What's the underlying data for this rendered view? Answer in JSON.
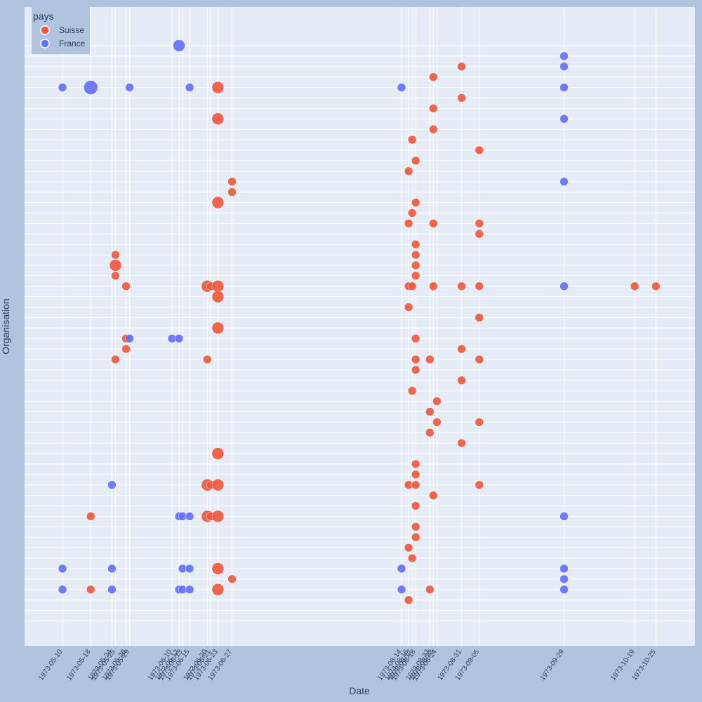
{
  "chart_data": {
    "type": "scatter",
    "title": "",
    "xlabel": "Date",
    "ylabel": "Organisation",
    "legend": {
      "title": "pays",
      "placement": "top-left",
      "entries": [
        {
          "name": "Suisse",
          "color": "#EF553B"
        },
        {
          "name": "France",
          "color": "#636EFA"
        }
      ]
    },
    "x_ticks": [
      "1973-05-10",
      "1973-05-18",
      "1973-05-24",
      "1973-05-25",
      "1973-05-28",
      "1973-05-29",
      "1973-06-10",
      "1973-06-12",
      "1973-06-13",
      "1973-06-15",
      "1973-06-20",
      "1973-06-21",
      "1973-06-23",
      "1973-06-27",
      "1973-08-14",
      "1973-08-16",
      "1973-08-17",
      "1973-08-18",
      "1973-08-22",
      "1973-08-23",
      "1973-08-24",
      "1973-08-31",
      "1973-09-05",
      "1973-09-29",
      "1973-10-19",
      "1973-10-25"
    ],
    "y_categories": 56,
    "grid": true,
    "series": [
      {
        "name": "Suisse",
        "color": "#EF553B",
        "points": [
          {
            "x": "1973-08-31",
            "y": 2,
            "s": 1
          },
          {
            "x": "1973-08-23",
            "y": 3,
            "s": 1
          },
          {
            "x": "1973-06-23",
            "y": 4,
            "s": 2
          },
          {
            "x": "1973-08-31",
            "y": 5,
            "s": 1
          },
          {
            "x": "1973-08-23",
            "y": 6,
            "s": 1
          },
          {
            "x": "1973-06-23",
            "y": 7,
            "s": 2
          },
          {
            "x": "1973-08-23",
            "y": 8,
            "s": 1
          },
          {
            "x": "1973-08-17",
            "y": 9,
            "s": 1
          },
          {
            "x": "1973-09-05",
            "y": 10,
            "s": 1
          },
          {
            "x": "1973-08-18",
            "y": 11,
            "s": 1
          },
          {
            "x": "1973-08-16",
            "y": 12,
            "s": 1
          },
          {
            "x": "1973-06-27",
            "y": 13,
            "s": 1
          },
          {
            "x": "1973-06-27",
            "y": 14,
            "s": 1
          },
          {
            "x": "1973-06-23",
            "y": 15,
            "s": 2
          },
          {
            "x": "1973-08-18",
            "y": 15,
            "s": 1
          },
          {
            "x": "1973-08-17",
            "y": 16,
            "s": 1
          },
          {
            "x": "1973-08-16",
            "y": 17,
            "s": 1
          },
          {
            "x": "1973-08-23",
            "y": 17,
            "s": 1
          },
          {
            "x": "1973-09-05",
            "y": 17,
            "s": 1
          },
          {
            "x": "1973-09-05",
            "y": 18,
            "s": 1
          },
          {
            "x": "1973-08-18",
            "y": 19,
            "s": 1
          },
          {
            "x": "1973-05-25",
            "y": 20,
            "s": 1
          },
          {
            "x": "1973-08-18",
            "y": 20,
            "s": 1
          },
          {
            "x": "1973-05-25",
            "y": 21,
            "s": 2
          },
          {
            "x": "1973-08-18",
            "y": 21,
            "s": 1
          },
          {
            "x": "1973-05-25",
            "y": 22,
            "s": 1
          },
          {
            "x": "1973-08-18",
            "y": 22,
            "s": 1
          },
          {
            "x": "1973-05-28",
            "y": 23,
            "s": 1
          },
          {
            "x": "1973-06-20",
            "y": 23,
            "s": 2
          },
          {
            "x": "1973-06-21",
            "y": 23,
            "s": 1
          },
          {
            "x": "1973-06-23",
            "y": 23,
            "s": 2
          },
          {
            "x": "1973-08-16",
            "y": 23,
            "s": 1
          },
          {
            "x": "1973-08-17",
            "y": 23,
            "s": 1
          },
          {
            "x": "1973-08-23",
            "y": 23,
            "s": 1
          },
          {
            "x": "1973-08-31",
            "y": 23,
            "s": 1
          },
          {
            "x": "1973-09-05",
            "y": 23,
            "s": 1
          },
          {
            "x": "1973-10-19",
            "y": 23,
            "s": 1
          },
          {
            "x": "1973-10-25",
            "y": 23,
            "s": 1
          },
          {
            "x": "1973-06-23",
            "y": 24,
            "s": 2
          },
          {
            "x": "1973-08-16",
            "y": 25,
            "s": 1
          },
          {
            "x": "1973-09-05",
            "y": 26,
            "s": 1
          },
          {
            "x": "1973-06-23",
            "y": 27,
            "s": 2
          },
          {
            "x": "1973-08-18",
            "y": 28,
            "s": 1
          },
          {
            "x": "1973-05-28",
            "y": 29,
            "s": 1
          },
          {
            "x": "1973-08-31",
            "y": 29,
            "s": 1
          },
          {
            "x": "1973-05-25",
            "y": 30,
            "s": 1
          },
          {
            "x": "1973-06-20",
            "y": 30,
            "s": 1
          },
          {
            "x": "1973-08-18",
            "y": 30,
            "s": 1
          },
          {
            "x": "1973-08-22",
            "y": 30,
            "s": 1
          },
          {
            "x": "1973-09-05",
            "y": 30,
            "s": 1
          },
          {
            "x": "1973-08-18",
            "y": 31,
            "s": 1
          },
          {
            "x": "1973-08-31",
            "y": 32,
            "s": 1
          },
          {
            "x": "1973-08-17",
            "y": 33,
            "s": 1
          },
          {
            "x": "1973-08-24",
            "y": 34,
            "s": 1
          },
          {
            "x": "1973-08-22",
            "y": 35,
            "s": 1
          },
          {
            "x": "1973-08-24",
            "y": 36,
            "s": 1
          },
          {
            "x": "1973-09-05",
            "y": 36,
            "s": 1
          },
          {
            "x": "1973-08-22",
            "y": 37,
            "s": 1
          },
          {
            "x": "1973-08-31",
            "y": 38,
            "s": 1
          },
          {
            "x": "1973-06-23",
            "y": 39,
            "s": 2
          },
          {
            "x": "1973-08-18",
            "y": 40,
            "s": 1
          },
          {
            "x": "1973-08-18",
            "y": 41,
            "s": 1
          },
          {
            "x": "1973-06-20",
            "y": 42,
            "s": 2
          },
          {
            "x": "1973-06-21",
            "y": 42,
            "s": 1
          },
          {
            "x": "1973-06-23",
            "y": 42,
            "s": 2
          },
          {
            "x": "1973-08-16",
            "y": 42,
            "s": 1
          },
          {
            "x": "1973-08-18",
            "y": 42,
            "s": 1
          },
          {
            "x": "1973-09-05",
            "y": 42,
            "s": 1
          },
          {
            "x": "1973-08-23",
            "y": 43,
            "s": 1
          },
          {
            "x": "1973-08-18",
            "y": 44,
            "s": 1
          },
          {
            "x": "1973-05-18",
            "y": 45,
            "s": 1
          },
          {
            "x": "1973-06-20",
            "y": 45,
            "s": 2
          },
          {
            "x": "1973-06-21",
            "y": 45,
            "s": 1
          },
          {
            "x": "1973-06-23",
            "y": 45,
            "s": 2
          },
          {
            "x": "1973-08-18",
            "y": 46,
            "s": 1
          },
          {
            "x": "1973-08-18",
            "y": 47,
            "s": 1
          },
          {
            "x": "1973-08-16",
            "y": 48,
            "s": 1
          },
          {
            "x": "1973-08-17",
            "y": 49,
            "s": 1
          },
          {
            "x": "1973-06-23",
            "y": 50,
            "s": 2
          },
          {
            "x": "1973-06-27",
            "y": 51,
            "s": 1
          },
          {
            "x": "1973-05-18",
            "y": 52,
            "s": 1
          },
          {
            "x": "1973-06-23",
            "y": 52,
            "s": 2
          },
          {
            "x": "1973-08-22",
            "y": 52,
            "s": 1
          },
          {
            "x": "1973-08-16",
            "y": 53,
            "s": 1
          },
          {
            "x": "1973-05-28",
            "y": 28,
            "s": 1
          }
        ]
      },
      {
        "name": "France",
        "color": "#636EFA",
        "points": [
          {
            "x": "1973-06-12",
            "y": 0,
            "s": 2
          },
          {
            "x": "1973-09-29",
            "y": 1,
            "s": 1
          },
          {
            "x": "1973-09-29",
            "y": 2,
            "s": 1
          },
          {
            "x": "1973-05-10",
            "y": 4,
            "s": 1
          },
          {
            "x": "1973-05-18",
            "y": 4,
            "s": 3
          },
          {
            "x": "1973-05-29",
            "y": 4,
            "s": 1
          },
          {
            "x": "1973-06-15",
            "y": 4,
            "s": 1
          },
          {
            "x": "1973-08-14",
            "y": 4,
            "s": 1
          },
          {
            "x": "1973-09-29",
            "y": 4,
            "s": 1
          },
          {
            "x": "1973-09-29",
            "y": 7,
            "s": 1
          },
          {
            "x": "1973-09-29",
            "y": 13,
            "s": 1
          },
          {
            "x": "1973-09-29",
            "y": 23,
            "s": 1
          },
          {
            "x": "1973-05-29",
            "y": 28,
            "s": 1
          },
          {
            "x": "1973-06-10",
            "y": 28,
            "s": 1
          },
          {
            "x": "1973-06-12",
            "y": 28,
            "s": 1
          },
          {
            "x": "1973-05-24",
            "y": 42,
            "s": 1
          },
          {
            "x": "1973-06-12",
            "y": 45,
            "s": 1
          },
          {
            "x": "1973-06-13",
            "y": 45,
            "s": 1
          },
          {
            "x": "1973-06-15",
            "y": 45,
            "s": 1
          },
          {
            "x": "1973-09-29",
            "y": 45,
            "s": 1
          },
          {
            "x": "1973-05-10",
            "y": 50,
            "s": 1
          },
          {
            "x": "1973-05-24",
            "y": 50,
            "s": 1
          },
          {
            "x": "1973-06-13",
            "y": 50,
            "s": 1
          },
          {
            "x": "1973-06-15",
            "y": 50,
            "s": 1
          },
          {
            "x": "1973-08-14",
            "y": 50,
            "s": 1
          },
          {
            "x": "1973-09-29",
            "y": 50,
            "s": 1
          },
          {
            "x": "1973-09-29",
            "y": 51,
            "s": 1
          },
          {
            "x": "1973-05-10",
            "y": 52,
            "s": 1
          },
          {
            "x": "1973-05-24",
            "y": 52,
            "s": 1
          },
          {
            "x": "1973-06-12",
            "y": 52,
            "s": 1
          },
          {
            "x": "1973-06-13",
            "y": 52,
            "s": 1
          },
          {
            "x": "1973-06-15",
            "y": 52,
            "s": 1
          },
          {
            "x": "1973-08-14",
            "y": 52,
            "s": 1
          },
          {
            "x": "1973-09-29",
            "y": 52,
            "s": 1
          }
        ]
      }
    ]
  }
}
